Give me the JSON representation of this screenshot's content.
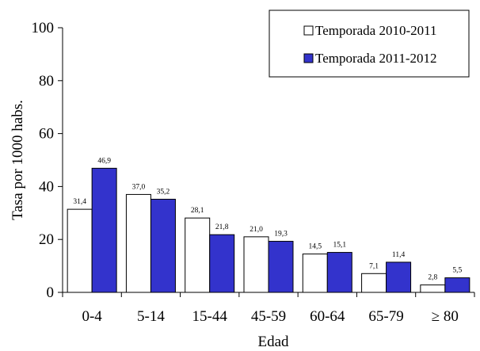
{
  "chart_data": {
    "type": "bar",
    "xlabel": "Edad",
    "ylabel": "Tasa por 1000 habs.",
    "ylim": [
      0,
      100
    ],
    "yticks": [
      0,
      20,
      40,
      60,
      80,
      100
    ],
    "categories": [
      "0-4",
      "5-14",
      "15-44",
      "45-59",
      "60-64",
      "65-79",
      "≥ 80"
    ],
    "series": [
      {
        "name": "Temporada 2010-2011",
        "color": "#ffffff",
        "values": [
          31.4,
          37.0,
          28.1,
          21.0,
          14.5,
          7.1,
          2.8
        ],
        "labels": [
          "31,4",
          "37,0",
          "28,1",
          "21,0",
          "14,5",
          "7,1",
          "2,8"
        ]
      },
      {
        "name": "Temporada 2011-2012",
        "color": "#3333cc",
        "values": [
          46.9,
          35.2,
          21.8,
          19.3,
          15.1,
          11.4,
          5.5
        ],
        "labels": [
          "46,9",
          "35,2",
          "21,8",
          "19,3",
          "15,1",
          "11,4",
          "5,5"
        ]
      }
    ],
    "legend": "top-right",
    "grid": false
  }
}
